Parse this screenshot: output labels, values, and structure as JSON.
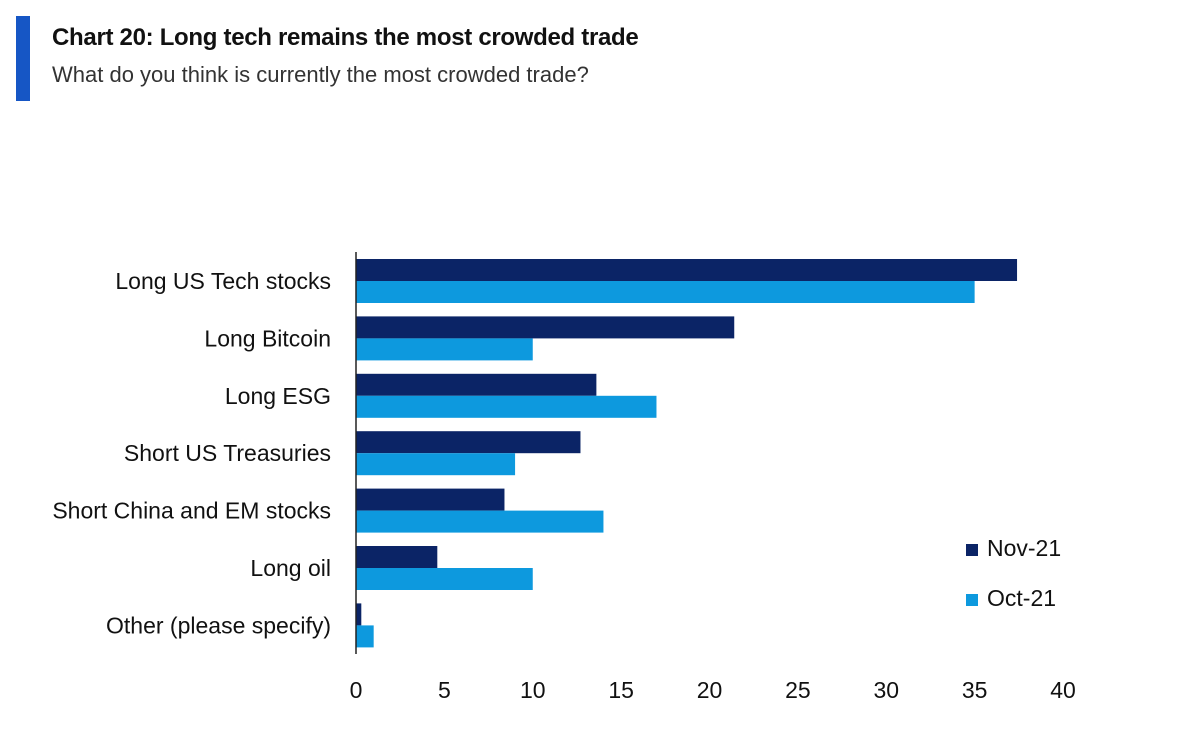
{
  "header": {
    "title": "Chart 20: Long tech remains the most crowded trade",
    "subtitle": "What do you think is currently the most crowded trade?"
  },
  "colors": {
    "accent": "#1656c5",
    "series": [
      "#0b2466",
      "#0d99de"
    ]
  },
  "chart_data": {
    "type": "bar",
    "orientation": "horizontal",
    "categories": [
      "Long US Tech stocks",
      "Long Bitcoin",
      "Long ESG",
      "Short US Treasuries",
      "Short China and EM stocks",
      "Long oil",
      "Other (please specify)"
    ],
    "series": [
      {
        "name": "Nov-21",
        "values": [
          37.4,
          21.4,
          13.6,
          12.7,
          8.4,
          4.6,
          0.3
        ]
      },
      {
        "name": "Oct-21",
        "values": [
          35.0,
          10.0,
          17.0,
          9.0,
          14.0,
          10.0,
          1.0
        ]
      }
    ],
    "xlim": [
      0,
      40
    ],
    "xticks": [
      "0",
      "5",
      "10",
      "15",
      "20",
      "25",
      "30",
      "35",
      "40"
    ],
    "grid": false,
    "legend_position": "bottom-right"
  }
}
